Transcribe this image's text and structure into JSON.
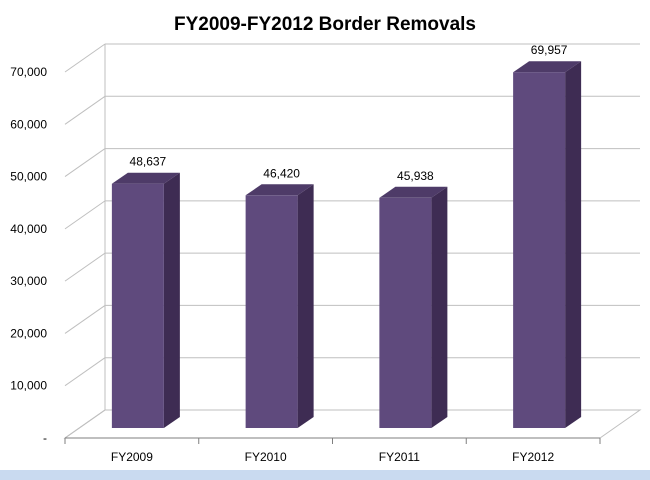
{
  "chart_data": {
    "type": "bar",
    "title": "FY2009-FY2012 Border Removals",
    "categories": [
      "FY2009",
      "FY2010",
      "FY2011",
      "FY2012"
    ],
    "values": [
      48637,
      46420,
      45938,
      69957
    ],
    "value_labels": [
      "48,637",
      "46,420",
      "45,938",
      "69,957"
    ],
    "y_ticks": [
      0,
      10000,
      20000,
      30000,
      40000,
      50000,
      60000,
      70000
    ],
    "y_tick_labels": [
      "-",
      "10,000",
      "20,000",
      "30,000",
      "40,000",
      "50,000",
      "60,000",
      "70,000"
    ],
    "ylim": [
      0,
      70000
    ],
    "grid": true,
    "legend": "none",
    "three_d": true,
    "colors": {
      "bar_front": "#5f4a7d",
      "bar_side": "#3e2c53",
      "bar_top": "#4e3b68",
      "grid": "#bfbfbf",
      "axis_text": "#000000"
    }
  }
}
